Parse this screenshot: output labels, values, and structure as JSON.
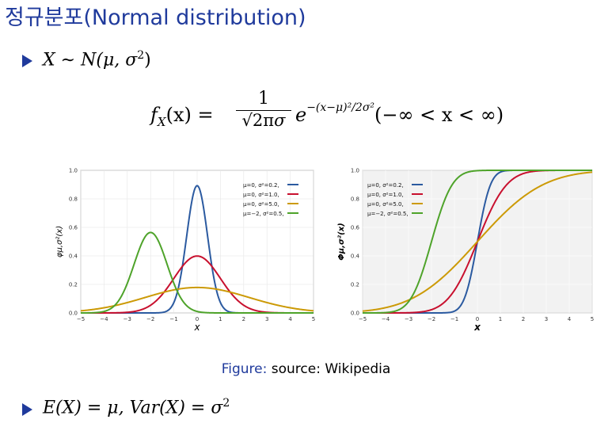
{
  "slide": {
    "title": "정규분포(Normal distribution)",
    "bullet1": {
      "lhs": "X",
      "sim": "∼",
      "dist": "N(μ, σ",
      "sup": "2",
      "close": ")"
    },
    "formula": {
      "lhs": "f",
      "sub": "X",
      "arg": "(x) =",
      "num": "1",
      "den_sqrt": "√2π",
      "den_sigma": "σ",
      "e": "e",
      "exp": "−(x−μ)²/2σ²",
      "range": "(−∞ < x < ∞)"
    },
    "bullet2": {
      "text": "E(X) = μ,  Var(X) = σ",
      "sup": "2"
    },
    "caption": {
      "label": "Figure:",
      "text": "source: Wikipedia"
    },
    "colors": {
      "blue": "#2b5aa0",
      "red": "#c8102e",
      "orange": "#cc9a06",
      "green": "#4ea32a",
      "title": "#1f3a9c"
    }
  },
  "chart_data": [
    {
      "type": "line",
      "title": "",
      "xlabel": "x",
      "ylabel": "φμ,σ²(x)",
      "xlim": [
        -5,
        5
      ],
      "ylim": [
        0,
        1.0
      ],
      "xticks": [
        "−5",
        "−4",
        "−3",
        "−2",
        "−1",
        "0",
        "1",
        "2",
        "3",
        "4",
        "5"
      ],
      "yticks": [
        "0.0",
        "0.2",
        "0.4",
        "0.6",
        "0.8",
        "1.0"
      ],
      "legend": "top-right",
      "series": [
        {
          "name": "μ=0,   σ²=0.2,",
          "mu": 0,
          "var": 0.2,
          "color": "#2b5aa0"
        },
        {
          "name": "μ=0,   σ²=1.0,",
          "mu": 0,
          "var": 1.0,
          "color": "#c8102e"
        },
        {
          "name": "μ=0,   σ²=5.0,",
          "mu": 0,
          "var": 5.0,
          "color": "#cc9a06"
        },
        {
          "name": "μ=−2,  σ²=0.5,",
          "mu": -2,
          "var": 0.5,
          "color": "#4ea32a"
        }
      ]
    },
    {
      "type": "line",
      "title": "",
      "xlabel": "x",
      "ylabel": "Φμ,σ²(x)",
      "xlim": [
        -5,
        5
      ],
      "ylim": [
        0,
        1.0
      ],
      "xticks": [
        "−5",
        "−4",
        "−3",
        "−2",
        "−1",
        "0",
        "1",
        "2",
        "3",
        "4",
        "5"
      ],
      "yticks": [
        "0.0",
        "0.2",
        "0.4",
        "0.6",
        "0.8",
        "1.0"
      ],
      "legend": "top-left",
      "series": [
        {
          "name": "μ=0,   σ²=0.2,",
          "mu": 0,
          "var": 0.2,
          "color": "#2b5aa0"
        },
        {
          "name": "μ=0,   σ²=1.0,",
          "mu": 0,
          "var": 1.0,
          "color": "#c8102e"
        },
        {
          "name": "μ=0,   σ²=5.0,",
          "mu": 0,
          "var": 5.0,
          "color": "#cc9a06"
        },
        {
          "name": "μ=−2,  σ²=0.5,",
          "mu": -2,
          "var": 0.5,
          "color": "#4ea32a"
        }
      ]
    }
  ]
}
